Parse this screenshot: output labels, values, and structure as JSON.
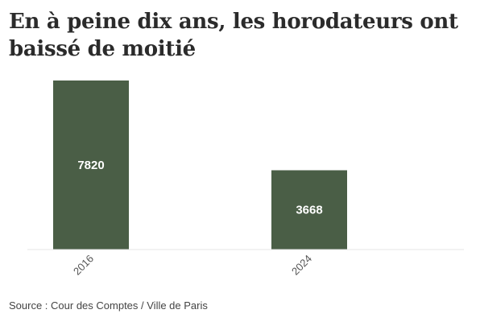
{
  "title": "En à peine dix ans, les horodateurs ont baissé de moitié",
  "source": "Source : Cour des Comptes / Ville de Paris",
  "colors": {
    "bar": "#4a5e46",
    "bar_label": "#ffffff",
    "title": "#2b2b2b"
  },
  "chart_data": {
    "type": "bar",
    "categories": [
      "2016",
      "2024"
    ],
    "values": [
      7820,
      3668
    ],
    "data_labels": [
      "7820",
      "3668"
    ],
    "ylim": [
      0,
      7820
    ],
    "grid": false,
    "legend": "none"
  }
}
